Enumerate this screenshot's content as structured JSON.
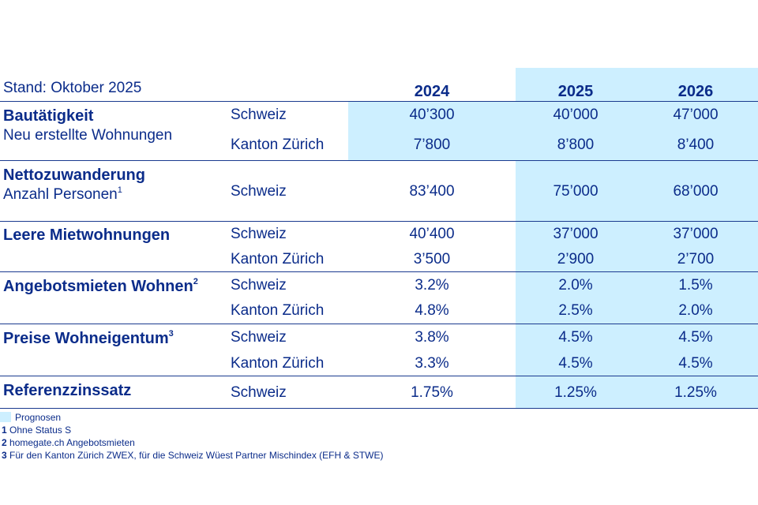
{
  "header": {
    "stand": "Stand: Oktober 2025",
    "years": [
      "2024",
      "2025",
      "2026"
    ]
  },
  "rows": [
    {
      "category": "Bautätigkeit",
      "subtitle": "Neu erstellte Wohnungen",
      "lines": [
        {
          "region": "Schweiz",
          "values": [
            "40’300",
            "40’000",
            "47’000"
          ]
        },
        {
          "region": "Kanton Zürich",
          "values": [
            "7’800",
            "8’800",
            "8’400"
          ]
        }
      ]
    },
    {
      "category": "Nettozuwanderung",
      "subtitle": "Anzahl Personen",
      "subtitle_note": "1",
      "lines": [
        {
          "region": "Schweiz",
          "values": [
            "83’400",
            "75’000",
            "68’000"
          ]
        }
      ]
    },
    {
      "category": "Leere Mietwohnungen",
      "lines": [
        {
          "region": "Schweiz",
          "values": [
            "40’400",
            "37’000",
            "37’000"
          ]
        },
        {
          "region": "Kanton Zürich",
          "values": [
            "3’500",
            "2’900",
            "2’700"
          ]
        }
      ]
    },
    {
      "category": "Angebotsmieten Wohnen",
      "category_note": "2",
      "lines": [
        {
          "region": "Schweiz",
          "values": [
            "3.2%",
            "2.0%",
            "1.5%"
          ]
        },
        {
          "region": "Kanton Zürich",
          "values": [
            "4.8%",
            "2.5%",
            "2.0%"
          ]
        }
      ]
    },
    {
      "category": "Preise Wohneigentum",
      "category_note": "3",
      "lines": [
        {
          "region": "Schweiz",
          "values": [
            "3.8%",
            "4.5%",
            "4.5%"
          ]
        },
        {
          "region": "Kanton Zürich",
          "values": [
            "3.3%",
            "4.5%",
            "4.5%"
          ]
        }
      ]
    },
    {
      "category": "Referenzzinssatz",
      "lines": [
        {
          "region": "Schweiz",
          "values": [
            "1.75%",
            "1.25%",
            "1.25%"
          ]
        }
      ]
    }
  ],
  "legend": {
    "label": "Prognosen",
    "color": "#cdefff"
  },
  "footnotes": [
    {
      "mark": "1",
      "text": "Ohne Status S"
    },
    {
      "mark": "2",
      "text": "homegate.ch Angebotsmieten"
    },
    {
      "mark": "3",
      "text": "Für den Kanton Zürich ZWEX, für die Schweiz Wüest Partner Mischindex (EFH & STWE)"
    }
  ]
}
